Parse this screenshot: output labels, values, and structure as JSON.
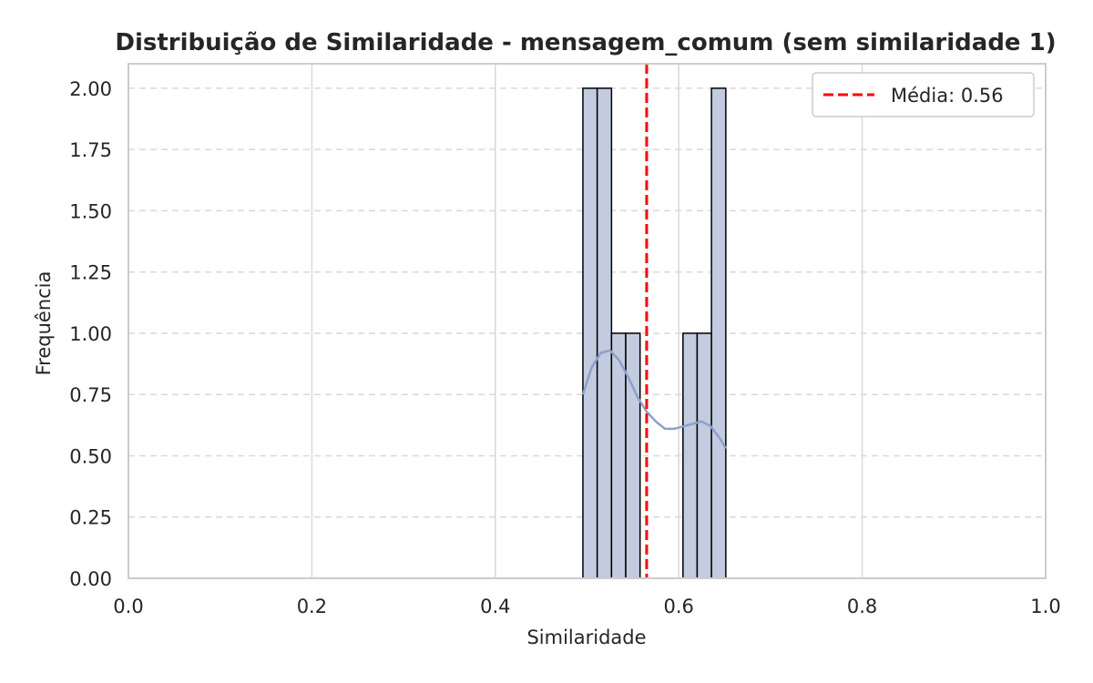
{
  "chart_data": {
    "type": "bar",
    "title": "Distribuição de Similaridade - mensagem_comum (sem similaridade 1)",
    "xlabel": "Similaridade",
    "ylabel": "Frequência",
    "xlim": [
      0.0,
      1.0
    ],
    "ylim": [
      0.0,
      2.1
    ],
    "xticks": [
      "0.0",
      "0.2",
      "0.4",
      "0.6",
      "0.8",
      "1.0"
    ],
    "yticks": [
      "0.00",
      "0.25",
      "0.50",
      "0.75",
      "1.00",
      "1.25",
      "1.50",
      "1.75",
      "2.00"
    ],
    "grid": true,
    "legend_position": "top-right",
    "bins": {
      "edges": [
        0.4955,
        0.5111,
        0.5267,
        0.5422,
        0.5578,
        0.5734,
        0.589,
        0.6046,
        0.6201,
        0.6357,
        0.6513
      ],
      "counts": [
        2,
        2,
        1,
        1,
        0,
        0,
        0,
        1,
        1,
        2
      ]
    },
    "kde": {
      "x": [
        0.4955,
        0.505,
        0.515,
        0.525,
        0.535,
        0.545,
        0.555,
        0.565,
        0.575,
        0.585,
        0.595,
        0.605,
        0.615,
        0.625,
        0.635,
        0.645,
        0.6513
      ],
      "y": [
        0.75,
        0.86,
        0.92,
        0.93,
        0.89,
        0.82,
        0.74,
        0.68,
        0.64,
        0.61,
        0.61,
        0.62,
        0.63,
        0.64,
        0.62,
        0.57,
        0.53
      ]
    },
    "mean_line": {
      "value": 0.565,
      "label": "Média: 0.56"
    },
    "colors": {
      "bar_fill": "#c2cbdf",
      "bar_edge": "#000000",
      "kde_line": "#8da0cb",
      "mean_line": "#ff0000",
      "grid": "#d9d9d9",
      "axes": "#cccccc",
      "text": "#262626"
    }
  }
}
